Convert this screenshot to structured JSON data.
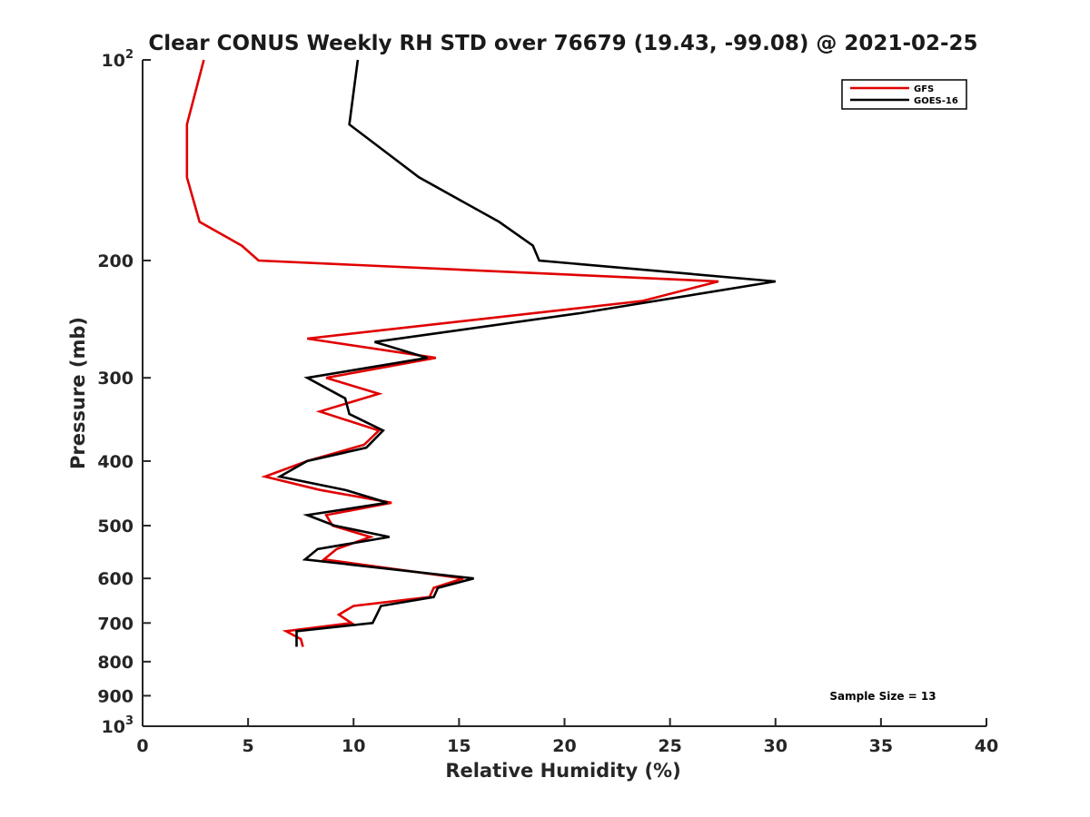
{
  "chart_data": {
    "type": "line",
    "title": "Clear CONUS Weekly RH STD over 76679 (19.43, -99.08) @ 2021-02-25",
    "xlabel": "Relative Humidity (%)",
    "ylabel": "Pressure (mb)",
    "xlim": [
      0,
      40
    ],
    "ylim": [
      100,
      1000
    ],
    "y_scale": "log",
    "y_reversed": true,
    "grid": false,
    "legend_position": "top-right",
    "x_ticks": [
      "0",
      "5",
      "10",
      "15",
      "20",
      "25",
      "30",
      "35",
      "40"
    ],
    "y_ticks": [
      {
        "value": 100,
        "base": "10",
        "exp": "2"
      },
      {
        "value": 200,
        "label": "200"
      },
      {
        "value": 300,
        "label": "300"
      },
      {
        "value": 400,
        "label": "400"
      },
      {
        "value": 500,
        "label": "500"
      },
      {
        "value": 600,
        "label": "600"
      },
      {
        "value": 700,
        "label": "700"
      },
      {
        "value": 800,
        "label": "800"
      },
      {
        "value": 900,
        "label": "900"
      },
      {
        "value": 1000,
        "base": "10",
        "exp": "3"
      }
    ],
    "series": [
      {
        "name": "GFS",
        "color": "#e00000",
        "points": [
          [
            2.9,
            100
          ],
          [
            2.1,
            125
          ],
          [
            2.1,
            150
          ],
          [
            2.7,
            175
          ],
          [
            4.7,
            190
          ],
          [
            5.5,
            200
          ],
          [
            27.3,
            215
          ],
          [
            23.7,
            230
          ],
          [
            7.8,
            262
          ],
          [
            13.9,
            280
          ],
          [
            8.7,
            300
          ],
          [
            11.2,
            317
          ],
          [
            8.4,
            337
          ],
          [
            11.2,
            360
          ],
          [
            10.5,
            378
          ],
          [
            7.8,
            400
          ],
          [
            5.8,
            422
          ],
          [
            8.4,
            442
          ],
          [
            11.8,
            462
          ],
          [
            8.7,
            482
          ],
          [
            9.0,
            500
          ],
          [
            10.8,
            520
          ],
          [
            9.2,
            542
          ],
          [
            8.6,
            562
          ],
          [
            15.2,
            600
          ],
          [
            13.8,
            620
          ],
          [
            13.6,
            640
          ],
          [
            10.0,
            660
          ],
          [
            9.3,
            680
          ],
          [
            9.9,
            700
          ],
          [
            6.8,
            720
          ],
          [
            7.5,
            740
          ],
          [
            7.6,
            760
          ]
        ]
      },
      {
        "name": "GOES-16",
        "color": "#000000",
        "points": [
          [
            10.2,
            100
          ],
          [
            9.8,
            125
          ],
          [
            13.1,
            150
          ],
          [
            16.9,
            175
          ],
          [
            18.5,
            190
          ],
          [
            18.8,
            200
          ],
          [
            30.0,
            215
          ],
          [
            20.7,
            240
          ],
          [
            11.0,
            265
          ],
          [
            13.5,
            280
          ],
          [
            7.8,
            300
          ],
          [
            9.6,
            322
          ],
          [
            9.8,
            340
          ],
          [
            11.4,
            360
          ],
          [
            10.6,
            382
          ],
          [
            7.8,
            400
          ],
          [
            6.5,
            422
          ],
          [
            9.6,
            442
          ],
          [
            11.6,
            462
          ],
          [
            7.8,
            482
          ],
          [
            9.1,
            500
          ],
          [
            11.7,
            520
          ],
          [
            8.3,
            542
          ],
          [
            7.7,
            562
          ],
          [
            15.7,
            600
          ],
          [
            14.0,
            620
          ],
          [
            13.8,
            640
          ],
          [
            11.3,
            660
          ],
          [
            11.1,
            680
          ],
          [
            10.9,
            700
          ],
          [
            7.3,
            720
          ],
          [
            7.3,
            740
          ],
          [
            7.3,
            760
          ]
        ]
      }
    ],
    "annotation": "Sample Size = 13"
  }
}
